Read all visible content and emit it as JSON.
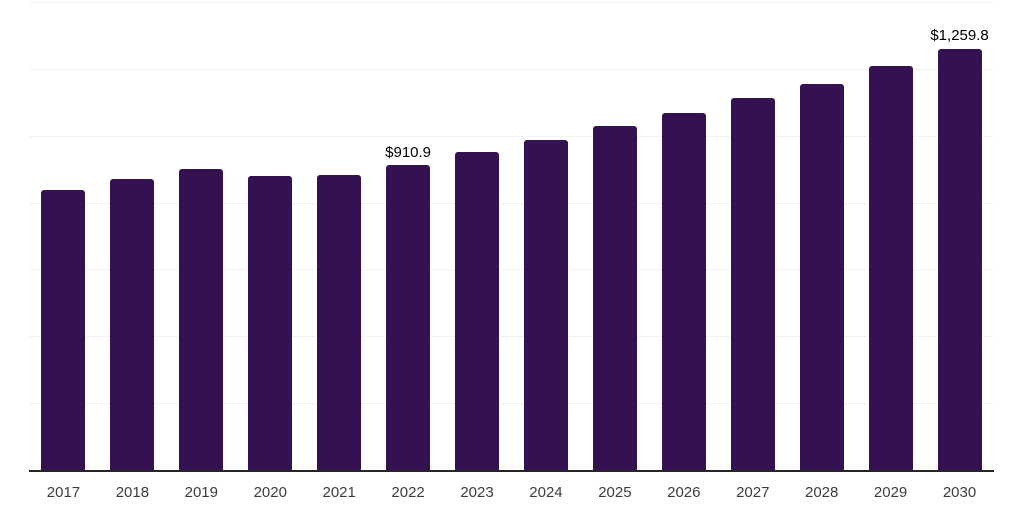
{
  "chart_data": {
    "type": "bar",
    "title": "",
    "xlabel": "",
    "ylabel": "",
    "categories": [
      "2017",
      "2018",
      "2019",
      "2020",
      "2021",
      "2022",
      "2023",
      "2024",
      "2025",
      "2026",
      "2027",
      "2028",
      "2029",
      "2030"
    ],
    "values": [
      837.9,
      869.5,
      901.4,
      880.2,
      882.5,
      910.9,
      950.2,
      986.5,
      1028.0,
      1067.1,
      1111.9,
      1154.7,
      1207.5,
      1259.8
    ],
    "point_labels": [
      null,
      null,
      null,
      null,
      null,
      "$910.9",
      null,
      null,
      null,
      null,
      null,
      null,
      null,
      "$1,259.8"
    ],
    "ylim": [
      0,
      1400
    ],
    "grid_step": 200,
    "grid_on": true,
    "legend": "none",
    "y_axis_ticks_visible": false,
    "colors": {
      "bar": "#341150",
      "grid": "#f2f2f2",
      "axis": "#262626",
      "tick_label": "#3d3d3d",
      "value_label": "#000000"
    }
  }
}
